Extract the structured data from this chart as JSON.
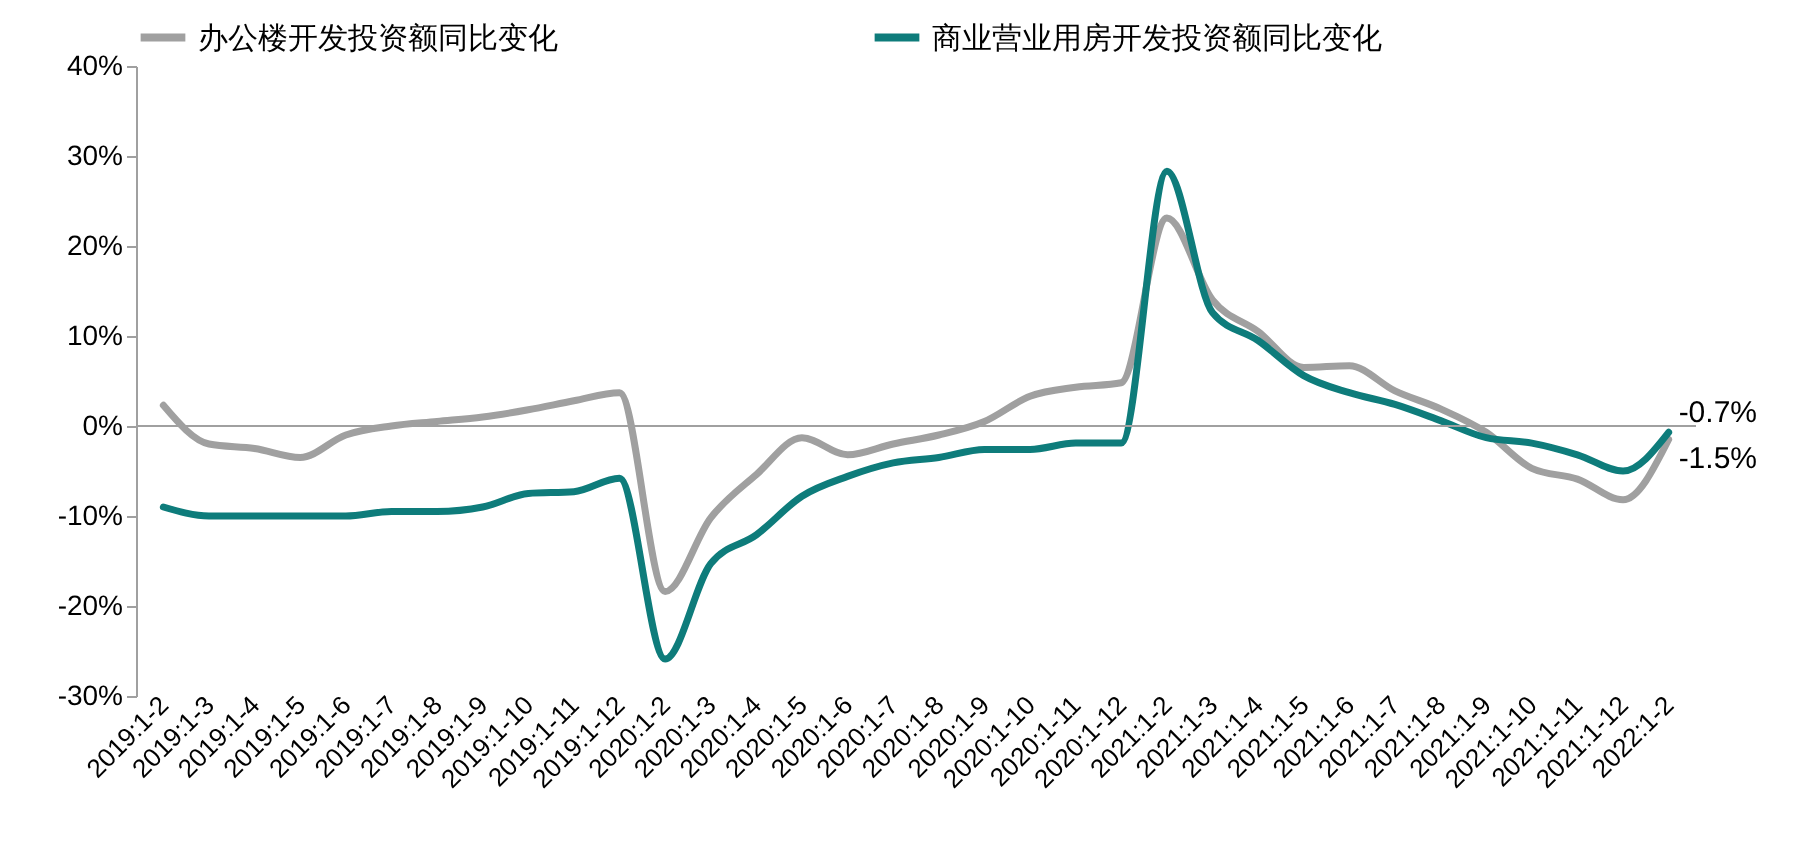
{
  "chart_data": {
    "type": "line",
    "categories": [
      "2019:1-2",
      "2019:1-3",
      "2019:1-4",
      "2019:1-5",
      "2019:1-6",
      "2019:1-7",
      "2019:1-8",
      "2019:1-9",
      "2019:1-10",
      "2019:1-11",
      "2019:1-12",
      "2020:1-2",
      "2020:1-3",
      "2020:1-4",
      "2020:1-5",
      "2020:1-6",
      "2020:1-7",
      "2020:1-8",
      "2020:1-9",
      "2020:1-10",
      "2020:1-11",
      "2020:1-12",
      "2021:1-2",
      "2021:1-3",
      "2021:1-4",
      "2021:1-5",
      "2021:1-6",
      "2021:1-7",
      "2021:1-8",
      "2021:1-9",
      "2021:1-10",
      "2021:1-11",
      "2021:1-12",
      "2022:1-2"
    ],
    "series": [
      {
        "name": "办公楼开发投资额同比变化",
        "color": "#a0a0a0",
        "values": [
          2.3,
          -2.0,
          -2.5,
          -3.5,
          -1.0,
          0.0,
          0.5,
          1.0,
          1.8,
          2.8,
          3.7,
          -18.4,
          -10.2,
          -5.4,
          -1.3,
          -3.2,
          -2.0,
          -1.0,
          0.5,
          3.3,
          4.3,
          4.8,
          23.1,
          14,
          10.5,
          6.5,
          6.7,
          3.9,
          1.9,
          -0.7,
          -4.7,
          -5.9,
          -8.2,
          -1.5
        ],
        "value_labels": [
          null,
          null,
          null,
          null,
          null,
          null,
          null,
          null,
          null,
          null,
          null,
          null,
          null,
          null,
          null,
          null,
          null,
          null,
          null,
          null,
          null,
          null,
          null,
          null,
          null,
          null,
          null,
          null,
          null,
          null,
          null,
          null,
          null,
          "-1.5%"
        ]
      },
      {
        "name": "商业营业用房开发投资额同比变化",
        "color": "#0e7c7b",
        "values": [
          -9.0,
          -10,
          -10,
          -10,
          -10,
          -9.5,
          -9.5,
          -9.0,
          -7.5,
          -7.3,
          -5.8,
          -25.9,
          -15.3,
          -12.1,
          -7.8,
          -5.6,
          -4.1,
          -3.5,
          -2.6,
          -2.6,
          -1.9,
          -1.9,
          28.3,
          12.6,
          9.5,
          5.6,
          3.7,
          2.4,
          0.6,
          -1.3,
          -1.9,
          -3.2,
          -5.0,
          -0.7
        ],
        "value_labels": [
          null,
          null,
          null,
          null,
          null,
          null,
          null,
          null,
          null,
          null,
          null,
          null,
          null,
          null,
          null,
          null,
          null,
          null,
          null,
          null,
          null,
          null,
          null,
          null,
          null,
          null,
          null,
          null,
          null,
          null,
          null,
          null,
          null,
          "-0.7%"
        ]
      }
    ],
    "ylim": [
      -30,
      40
    ],
    "yticks": [
      {
        "value": 40,
        "label": "40%"
      },
      {
        "value": 30,
        "label": "30%"
      },
      {
        "value": 20,
        "label": "20%"
      },
      {
        "value": 10,
        "label": "10%"
      },
      {
        "value": 0,
        "label": "0%"
      },
      {
        "value": -10,
        "label": "-10%"
      },
      {
        "value": -20,
        "label": "-20%"
      },
      {
        "value": -30,
        "label": "-30%"
      }
    ],
    "ref_lines": [
      {
        "axis": "y",
        "value": 0,
        "color": "#a0a0a0"
      }
    ],
    "legend": "top",
    "grid": false
  }
}
